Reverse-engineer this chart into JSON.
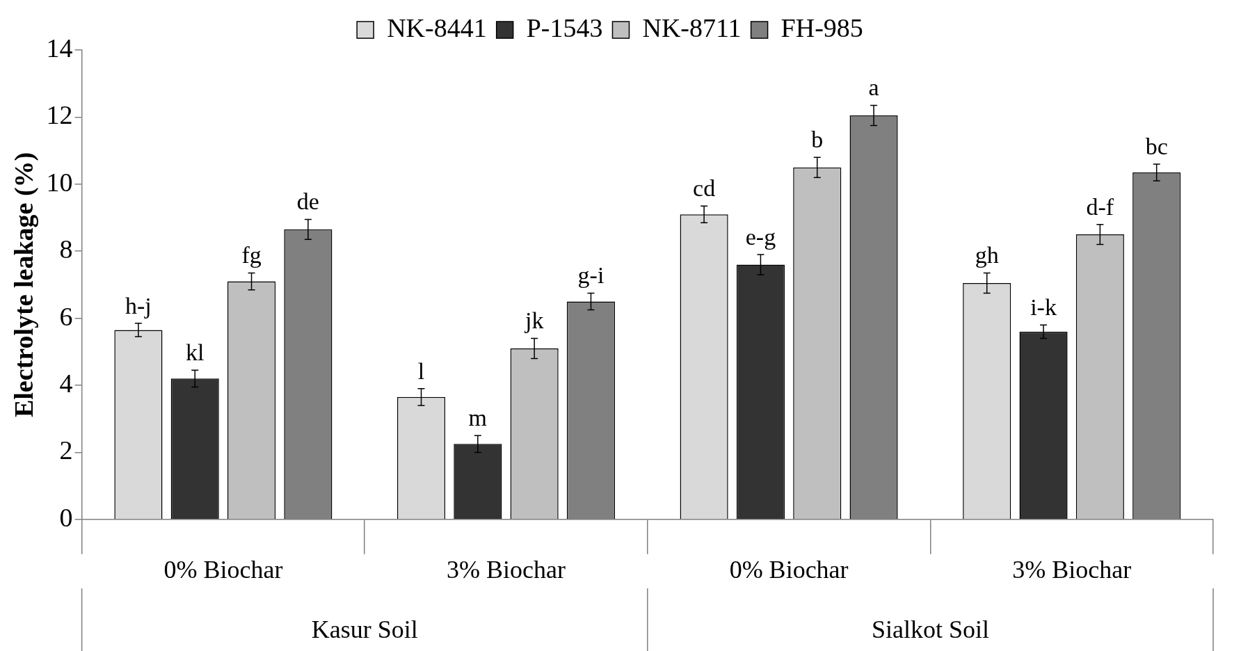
{
  "chart_data": {
    "type": "bar",
    "ylabel": "Electrolyte leakage (%)",
    "categories": [
      "0% Biochar",
      "3% Biochar",
      "0% Biochar",
      "3% Biochar"
    ],
    "annotations": [
      "Kasur Soil",
      "Sialkot Soil"
    ],
    "ylim": [
      0,
      14
    ],
    "yticks": [
      0,
      2,
      4,
      6,
      8,
      10,
      12,
      14
    ],
    "legend": "top",
    "grid": false,
    "series": [
      {
        "name": "NK-8441",
        "color": "#d9d9d9",
        "values": [
          5.65,
          3.65,
          9.1,
          7.05
        ],
        "errors": [
          0.2,
          0.25,
          0.25,
          0.3
        ],
        "value_labels": [
          "h-j",
          "l",
          "cd",
          "gh"
        ]
      },
      {
        "name": "P-1543",
        "color": "#333333",
        "values": [
          4.2,
          2.25,
          7.6,
          5.6
        ],
        "errors": [
          0.25,
          0.25,
          0.3,
          0.2
        ],
        "value_labels": [
          "kl",
          "m",
          "e-g",
          "i-k"
        ]
      },
      {
        "name": "NK-8711",
        "color": "#bfbfbf",
        "values": [
          7.1,
          5.1,
          10.5,
          8.5
        ],
        "errors": [
          0.25,
          0.3,
          0.3,
          0.3
        ],
        "value_labels": [
          "fg",
          "jk",
          "b",
          "d-f"
        ]
      },
      {
        "name": "FH-985",
        "color": "#808080",
        "values": [
          8.65,
          6.5,
          12.05,
          10.35
        ],
        "errors": [
          0.3,
          0.25,
          0.3,
          0.25
        ],
        "value_labels": [
          "de",
          "g-i",
          "a",
          "bc"
        ]
      }
    ]
  }
}
